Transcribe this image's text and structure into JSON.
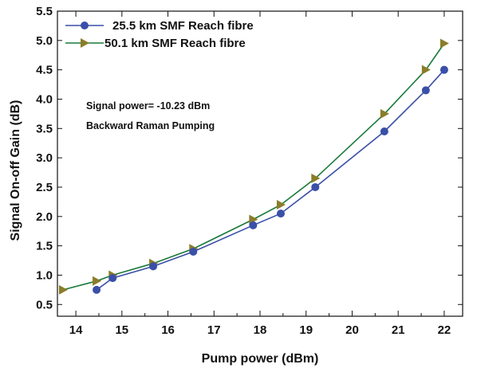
{
  "chart_data": {
    "type": "line",
    "xlabel": "Pump power (dBm)",
    "ylabel": "Signal On-off Gain (dB)",
    "xlim": [
      13.6,
      22.4
    ],
    "ylim": [
      0.3,
      5.5
    ],
    "xticks": [
      "14",
      "15",
      "16",
      "17",
      "18",
      "19",
      "20",
      "21",
      "22"
    ],
    "yticks": [
      "0.5",
      "1.0",
      "1.5",
      "2.0",
      "2.5",
      "3.0",
      "3.5",
      "4.0",
      "4.5",
      "5.0",
      "5.5"
    ],
    "grid": false,
    "legend_position": "top-left",
    "annotations": [
      "Signal power= -10.23 dBm",
      "Backward Raman Pumping"
    ],
    "series": [
      {
        "name": "25.5 km SMF Reach fibre",
        "marker": "circle",
        "color": "#3a4fa8",
        "x": [
          14.45,
          14.8,
          15.68,
          16.55,
          17.85,
          18.45,
          19.2,
          20.7,
          21.6,
          22.0
        ],
        "y": [
          0.75,
          0.95,
          1.15,
          1.4,
          1.85,
          2.05,
          2.5,
          3.45,
          4.15,
          4.5
        ]
      },
      {
        "name": "50.1 km SMF Reach fibre",
        "marker": "triangle-right",
        "color": "#1a7a3a",
        "marker_color": "#8a7d2a",
        "x": [
          13.72,
          14.45,
          14.8,
          15.68,
          16.55,
          17.85,
          18.45,
          19.2,
          20.7,
          21.6,
          22.0
        ],
        "y": [
          0.75,
          0.9,
          1.0,
          1.2,
          1.45,
          1.95,
          2.2,
          2.65,
          3.75,
          4.5,
          4.95
        ]
      }
    ]
  }
}
